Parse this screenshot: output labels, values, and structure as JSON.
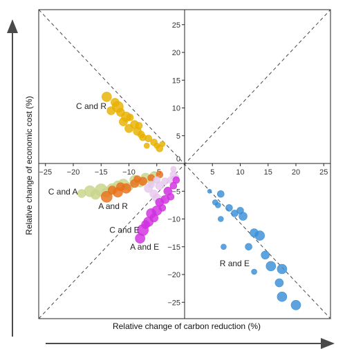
{
  "chart_data": {
    "type": "scatter",
    "xlabel": "Relative change of carbon reduction (%)",
    "ylabel": "Relative change of economic cost (%)",
    "xlim": [
      -28,
      28
    ],
    "ylim": [
      -28,
      28
    ],
    "x_ticks": [
      -25,
      -20,
      -15,
      -10,
      -5,
      0,
      5,
      10,
      15,
      20,
      25
    ],
    "y_ticks": [
      -25,
      -20,
      -15,
      -10,
      -5,
      0,
      5,
      10,
      15,
      20,
      25
    ],
    "x_tick_labels": [
      "−25",
      "−20",
      "−15",
      "−10",
      "−5",
      "0",
      "5",
      "10",
      "15",
      "20",
      "25"
    ],
    "y_tick_labels": [
      "−25",
      "−20",
      "−15",
      "−10",
      "−5",
      "0",
      "5",
      "10",
      "15",
      "20",
      "25"
    ],
    "grid": false,
    "diagonal_reference_lines": true,
    "annotations": [
      {
        "text": "C and R",
        "x": -19.5,
        "y": 9.8
      },
      {
        "text": "C and A",
        "x": -24.5,
        "y": -5.6
      },
      {
        "text": "A and R",
        "x": -15.5,
        "y": -8.2
      },
      {
        "text": "C and E",
        "x": -13.5,
        "y": -12.5
      },
      {
        "text": "A and E",
        "x": -9.8,
        "y": -15.5
      },
      {
        "text": "R and E",
        "x": 6.3,
        "y": -18.5
      }
    ],
    "series": [
      {
        "name": "C and R",
        "color": "#e8b100",
        "points": [
          {
            "x": -14.0,
            "y": 12.0,
            "s": 7
          },
          {
            "x": -12.0,
            "y": 10.2,
            "s": 8
          },
          {
            "x": -11.5,
            "y": 9.2,
            "s": 6
          },
          {
            "x": -10.5,
            "y": 8.4,
            "s": 7
          },
          {
            "x": -9.0,
            "y": 7.0,
            "s": 6
          },
          {
            "x": -8.5,
            "y": 5.8,
            "s": 6
          },
          {
            "x": -7.5,
            "y": 4.7,
            "s": 5
          },
          {
            "x": -6.5,
            "y": 4.5,
            "s": 5
          },
          {
            "x": -5.5,
            "y": 3.8,
            "s": 5
          },
          {
            "x": -4.5,
            "y": 2.7,
            "s": 5
          },
          {
            "x": -12.5,
            "y": 11.0,
            "s": 6
          },
          {
            "x": -13.2,
            "y": 9.5,
            "s": 6
          },
          {
            "x": -11.0,
            "y": 7.5,
            "s": 6
          },
          {
            "x": -10.0,
            "y": 6.3,
            "s": 6
          },
          {
            "x": -9.8,
            "y": 8.3,
            "s": 5
          },
          {
            "x": -8.2,
            "y": 6.8,
            "s": 5
          },
          {
            "x": -7.8,
            "y": 5.2,
            "s": 5
          },
          {
            "x": -6.8,
            "y": 3.2,
            "s": 4
          },
          {
            "x": -5.0,
            "y": 3.2,
            "s": 4
          },
          {
            "x": -4.0,
            "y": 3.5,
            "s": 4
          }
        ]
      },
      {
        "name": "C and A",
        "color": "#c9d48a",
        "points": [
          {
            "x": -17.0,
            "y": -5.0,
            "s": 8
          },
          {
            "x": -15.0,
            "y": -4.8,
            "s": 9
          },
          {
            "x": -13.0,
            "y": -4.6,
            "s": 8
          },
          {
            "x": -11.0,
            "y": -3.8,
            "s": 8
          },
          {
            "x": -9.0,
            "y": -3.0,
            "s": 7
          },
          {
            "x": -7.0,
            "y": -2.6,
            "s": 7
          },
          {
            "x": -5.5,
            "y": -2.2,
            "s": 6
          },
          {
            "x": -18.5,
            "y": -5.4,
            "s": 6
          },
          {
            "x": -16.0,
            "y": -5.6,
            "s": 7
          },
          {
            "x": -14.0,
            "y": -5.2,
            "s": 7
          },
          {
            "x": -12.0,
            "y": -4.0,
            "s": 7
          },
          {
            "x": -10.0,
            "y": -4.2,
            "s": 6
          },
          {
            "x": -8.0,
            "y": -3.5,
            "s": 6
          },
          {
            "x": -6.0,
            "y": -3.2,
            "s": 5
          }
        ]
      },
      {
        "name": "A and R",
        "color": "#e8701a",
        "points": [
          {
            "x": -14.0,
            "y": -6.0,
            "s": 8
          },
          {
            "x": -12.0,
            "y": -5.2,
            "s": 7
          },
          {
            "x": -10.5,
            "y": -4.5,
            "s": 7
          },
          {
            "x": -9.0,
            "y": -3.6,
            "s": 6
          },
          {
            "x": -7.5,
            "y": -3.2,
            "s": 6
          },
          {
            "x": -6.0,
            "y": -2.6,
            "s": 5
          },
          {
            "x": -4.5,
            "y": -2.0,
            "s": 5
          },
          {
            "x": -13.0,
            "y": -4.8,
            "s": 6
          },
          {
            "x": -11.5,
            "y": -4.2,
            "s": 6
          },
          {
            "x": -8.5,
            "y": -2.8,
            "s": 5
          }
        ]
      },
      {
        "name": "C and E",
        "color": "#e7c8ee",
        "points": [
          {
            "x": -6.5,
            "y": -4.5,
            "s": 6
          },
          {
            "x": -5.5,
            "y": -5.5,
            "s": 6
          },
          {
            "x": -4.5,
            "y": -4.0,
            "s": 6
          },
          {
            "x": -4.0,
            "y": -6.5,
            "s": 5
          },
          {
            "x": -3.5,
            "y": -3.2,
            "s": 5
          },
          {
            "x": -2.5,
            "y": -3.0,
            "s": 5
          },
          {
            "x": -2.0,
            "y": -2.0,
            "s": 5
          },
          {
            "x": -1.5,
            "y": -2.5,
            "s": 4
          },
          {
            "x": -3.0,
            "y": -4.8,
            "s": 5
          },
          {
            "x": -6.0,
            "y": -3.8,
            "s": 5
          },
          {
            "x": -5.0,
            "y": -3.0,
            "s": 5
          },
          {
            "x": -2.0,
            "y": -1.0,
            "s": 4
          },
          {
            "x": -4.5,
            "y": -7.0,
            "s": 5
          },
          {
            "x": -5.0,
            "y": -6.2,
            "s": 6
          }
        ]
      },
      {
        "name": "A and E",
        "color": "#d12fe0",
        "points": [
          {
            "x": -8.0,
            "y": -13.5,
            "s": 7
          },
          {
            "x": -7.5,
            "y": -12.0,
            "s": 8
          },
          {
            "x": -6.5,
            "y": -10.5,
            "s": 7
          },
          {
            "x": -6.0,
            "y": -9.0,
            "s": 7
          },
          {
            "x": -5.0,
            "y": -8.5,
            "s": 7
          },
          {
            "x": -4.5,
            "y": -7.0,
            "s": 6
          },
          {
            "x": -3.5,
            "y": -6.5,
            "s": 6
          },
          {
            "x": -3.0,
            "y": -5.0,
            "s": 6
          },
          {
            "x": -2.0,
            "y": -4.0,
            "s": 5
          },
          {
            "x": -1.5,
            "y": -3.0,
            "s": 5
          },
          {
            "x": -7.0,
            "y": -11.0,
            "s": 6
          },
          {
            "x": -5.5,
            "y": -9.8,
            "s": 6
          },
          {
            "x": -4.0,
            "y": -8.0,
            "s": 5
          },
          {
            "x": -2.5,
            "y": -6.0,
            "s": 5
          }
        ]
      },
      {
        "name": "R and E",
        "color": "#3a8fd6",
        "points": [
          {
            "x": 4.5,
            "y": -5.0,
            "s": 3
          },
          {
            "x": 6.5,
            "y": -5.5,
            "s": 5
          },
          {
            "x": 6.0,
            "y": -7.5,
            "s": 4
          },
          {
            "x": 8.0,
            "y": -8.0,
            "s": 5
          },
          {
            "x": 10.0,
            "y": -8.5,
            "s": 5
          },
          {
            "x": 10.5,
            "y": -9.5,
            "s": 6
          },
          {
            "x": 12.5,
            "y": -12.5,
            "s": 6
          },
          {
            "x": 13.5,
            "y": -13.0,
            "s": 7
          },
          {
            "x": 14.5,
            "y": -16.5,
            "s": 6
          },
          {
            "x": 15.5,
            "y": -18.5,
            "s": 7
          },
          {
            "x": 17.5,
            "y": -19.0,
            "s": 7
          },
          {
            "x": 17.0,
            "y": -21.5,
            "s": 6
          },
          {
            "x": 17.5,
            "y": -24.0,
            "s": 7
          },
          {
            "x": 20.0,
            "y": -25.5,
            "s": 7
          },
          {
            "x": 12.5,
            "y": -19.5,
            "s": 4
          },
          {
            "x": 11.5,
            "y": -15.0,
            "s": 5
          },
          {
            "x": 7.0,
            "y": -15.0,
            "s": 4
          },
          {
            "x": 6.5,
            "y": -10.0,
            "s": 4
          },
          {
            "x": 5.5,
            "y": -7.0,
            "s": 4
          },
          {
            "x": 9.0,
            "y": -9.0,
            "s": 5
          }
        ]
      }
    ]
  }
}
